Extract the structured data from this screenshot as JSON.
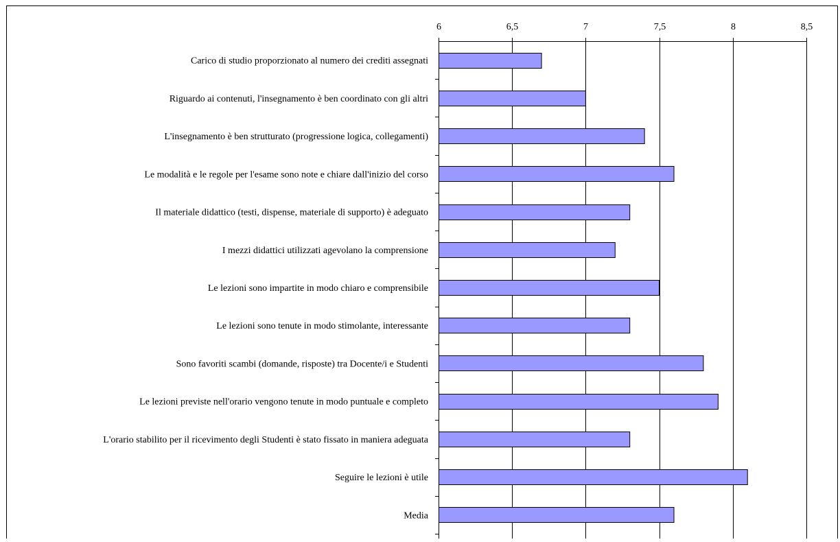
{
  "chart_data": {
    "type": "bar",
    "orientation": "horizontal",
    "categories": [
      "Carico di studio proporzionato al numero dei crediti assegnati",
      "Riguardo ai contenuti, l'insegnamento è ben coordinato con gli altri",
      "L'insegnamento è ben strutturato (progressione logica, collegamenti)",
      "Le modalità e le regole per l'esame sono note e chiare dall'inizio del corso",
      "Il materiale didattico (testi, dispense, materiale di supporto) è adeguato",
      "I mezzi didattici utilizzati agevolano la comprensione",
      "Le lezioni sono impartite in modo chiaro e comprensibile",
      "Le lezioni sono tenute in modo stimolante, interessante",
      "Sono favoriti scambi (domande, risposte) tra Docente/i e Studenti",
      "Le lezioni previste nell'orario vengono tenute in modo puntuale e completo",
      "L'orario stabilito per il ricevimento degli Studenti è stato fissato in maniera adeguata",
      "Seguire le lezioni è utile",
      "Media"
    ],
    "values": [
      6.7,
      7.0,
      7.4,
      7.6,
      7.3,
      7.2,
      7.5,
      7.3,
      7.8,
      7.9,
      7.3,
      8.1,
      7.6
    ],
    "xlim": [
      6,
      8.5
    ],
    "xticks": [
      "6",
      "6,5",
      "7",
      "7,5",
      "8",
      "8,5"
    ],
    "xtick_values": [
      6,
      6.5,
      7,
      7.5,
      8,
      8.5
    ],
    "axis_position": "top",
    "grid": "vertical",
    "bar_color": "#9999ff",
    "bar_edge_color": "#000000",
    "title": "",
    "xlabel": "",
    "ylabel": ""
  }
}
